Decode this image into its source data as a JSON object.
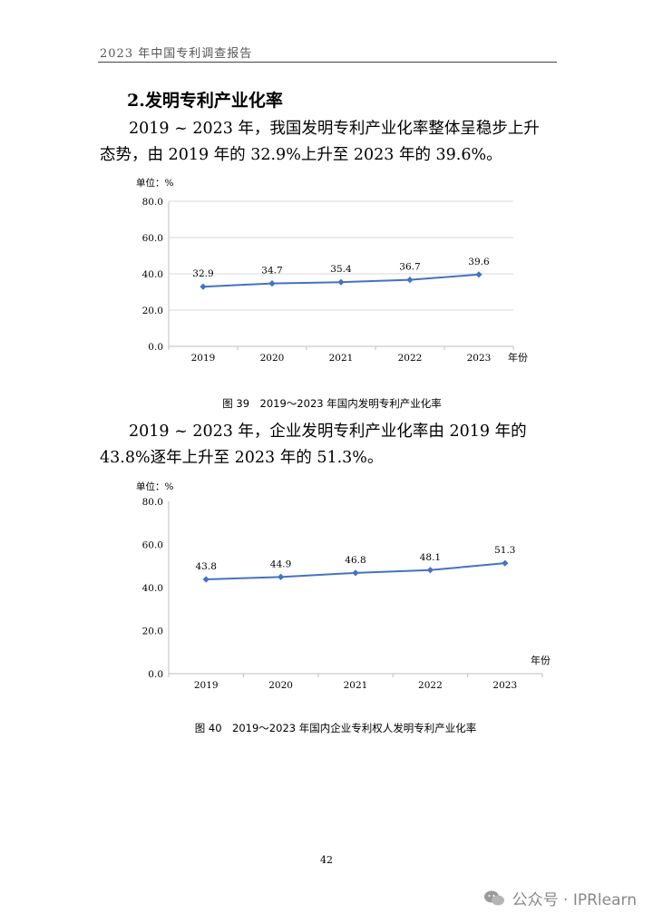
{
  "header": {
    "title": "2023 年中国专利调查报告"
  },
  "section": {
    "title": "2.发明专利产业化率",
    "para1": "2019 ~ 2023 年，我国发明专利产业化率整体呈稳步上升态势，由 2019 年的 32.9%上升至 2023 年的 39.6%。",
    "para2": "2019 ~ 2023 年，企业发明专利产业化率由 2019 年的 43.8%逐年上升至 2023 年的 51.3%。"
  },
  "chart_data": [
    {
      "type": "line",
      "unit_label": "单位：%",
      "x_unit_label": "年份",
      "categories": [
        "2019",
        "2020",
        "2021",
        "2022",
        "2023"
      ],
      "values": [
        32.9,
        34.7,
        35.4,
        36.7,
        39.6
      ],
      "value_labels": [
        "32.9",
        "34.7",
        "35.4",
        "36.7",
        "39.6"
      ],
      "yticks": [
        "0.0",
        "20.0",
        "40.0",
        "60.0",
        "80.0"
      ],
      "ylim": [
        0,
        80
      ],
      "color": "#4472c4",
      "grid": true,
      "caption": "图 39　2019～2023 年国内发明专利产业化率"
    },
    {
      "type": "line",
      "unit_label": "单位：%",
      "x_unit_label": "年份",
      "categories": [
        "2019",
        "2020",
        "2021",
        "2022",
        "2023"
      ],
      "values": [
        43.8,
        44.9,
        46.8,
        48.1,
        51.3
      ],
      "value_labels": [
        "43.8",
        "44.9",
        "46.8",
        "48.1",
        "51.3"
      ],
      "yticks": [
        "0.0",
        "20.0",
        "40.0",
        "60.0",
        "80.0"
      ],
      "ylim": [
        0,
        80
      ],
      "color": "#4472c4",
      "grid": false,
      "caption": "图 40　2019～2023 年国内企业专利权人发明专利产业化率"
    }
  ],
  "footer": {
    "page_number": "42",
    "watermark": "公众号 · IPRlearn",
    "watermark_icon": "wechat-icon"
  }
}
